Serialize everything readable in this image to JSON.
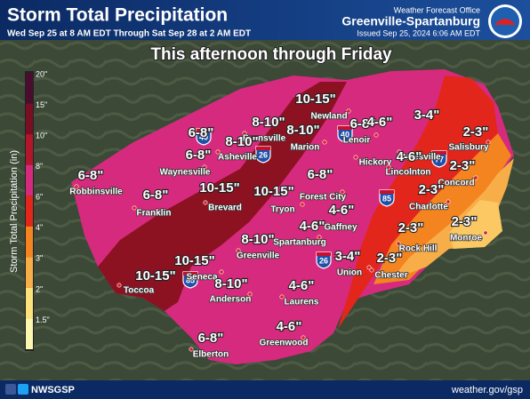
{
  "header": {
    "title": "Storm Total Precipitation",
    "subtitle": "Wed Sep 25 at 8 AM EDT Through Sat Sep 28 at 2 AM EDT",
    "office": "Weather Forecast Office",
    "office_name": "Greenville-Spartanburg",
    "issued": "Issued Sep 25, 2024 6:06 AM EDT"
  },
  "overlay_title": "This afternoon through Friday",
  "legend": {
    "title": "Storm Total Precipitation (in)",
    "labels": [
      "20\"",
      "15\"",
      "10\"",
      "8\"",
      "6\"",
      "4\"",
      "3\"",
      "2\"",
      "1.5\""
    ]
  },
  "amounts": [
    "10-15\"",
    "8-10\"",
    "6-8\"",
    "4-6\"",
    "3-4\"",
    "8-10\"",
    "8-10\"",
    "6-8\"",
    "2-3\"",
    "6-8\"",
    "4-6\"",
    "2-3\"",
    "6-8\"",
    "6-8\"",
    "10-15\"",
    "10-15\"",
    "6-8\"",
    "2-3\"",
    "4-6\"",
    "2-3\"",
    "4-6\"",
    "2-3\"",
    "8-10\"",
    "3-4\"",
    "2-3\"",
    "10-15\"",
    "10-15\"",
    "8-10\"",
    "4-6\"",
    "4-6\"",
    "6-8\""
  ],
  "cities": [
    "Newland",
    "Burnsville",
    "Lenoir",
    "Statesville",
    "Salisbury",
    "Asheville",
    "Marion",
    "Hickory",
    "Waynesville",
    "Lincolnton",
    "Concord",
    "Robbinsville",
    "Forest City",
    "Brevard",
    "Tryon",
    "Franklin",
    "Charlotte",
    "Gaffney",
    "Spartanburg",
    "Rock Hill",
    "Monroe",
    "Greenville",
    "Union",
    "Chester",
    "Seneca",
    "Toccoa",
    "Anderson",
    "Laurens",
    "Greenwood",
    "Elberton"
  ],
  "shields": [
    "40",
    "40",
    "26",
    "77",
    "85",
    "26",
    "85"
  ],
  "footer": {
    "social": "NWSGSP",
    "url": "weather.gov/gsp"
  }
}
